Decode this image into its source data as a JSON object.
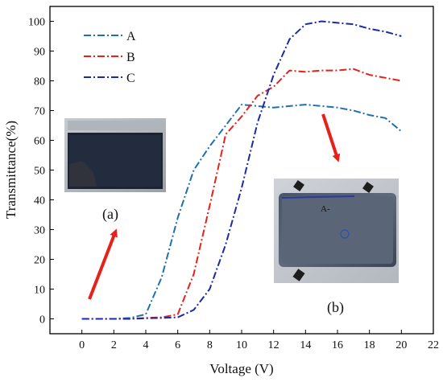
{
  "chart_data": {
    "type": "line",
    "xlabel": "Voltage (V)",
    "ylabel": "Transmittance(%)",
    "xlim": [
      -2,
      22
    ],
    "ylim": [
      -5,
      105
    ],
    "x_ticks": [
      0,
      2,
      4,
      6,
      8,
      10,
      12,
      14,
      16,
      18,
      20,
      22
    ],
    "y_ticks": [
      0,
      10,
      20,
      30,
      40,
      50,
      60,
      70,
      80,
      90,
      100
    ],
    "grid": false,
    "legend_position": "top-left",
    "series": [
      {
        "name": "A",
        "color": "#1f6fb3",
        "dash": "dash-dot",
        "x": [
          0,
          1,
          2,
          3,
          4,
          5,
          6,
          7,
          8,
          9,
          10,
          11,
          12,
          13,
          14,
          15,
          16,
          17,
          18,
          19,
          20
        ],
        "y": [
          0,
          0,
          0,
          0.3,
          1.5,
          14,
          34,
          50,
          58,
          65,
          72,
          71.5,
          71,
          71.5,
          72,
          71.5,
          71,
          70,
          68.5,
          67.5,
          63
        ]
      },
      {
        "name": "B",
        "color": "#e8201c",
        "dash": "dash-dot",
        "x": [
          0,
          1,
          2,
          3,
          4,
          5,
          6,
          7,
          8,
          9,
          10,
          11,
          12,
          13,
          14,
          15,
          16,
          17,
          18,
          19,
          20
        ],
        "y": [
          0,
          0,
          0,
          0,
          0.3,
          0.5,
          1.5,
          15,
          38,
          62,
          68,
          75,
          78,
          83.5,
          83,
          83.5,
          83.5,
          84,
          82,
          81,
          80
        ]
      },
      {
        "name": "C",
        "color": "#1a2aa8",
        "dash": "dash-dot",
        "x": [
          0,
          1,
          2,
          3,
          4,
          5,
          6,
          7,
          8,
          9,
          10,
          11,
          12,
          13,
          14,
          15,
          16,
          17,
          18,
          19,
          20
        ],
        "y": [
          0,
          0,
          0,
          0,
          0.2,
          0.3,
          0.5,
          3,
          10,
          25,
          44,
          66,
          82,
          94,
          99,
          100,
          99.5,
          99,
          97.5,
          96.5,
          95
        ]
      }
    ],
    "annotations": [
      {
        "label": "(a)"
      },
      {
        "label": "(b)"
      }
    ],
    "inset_images": {
      "a_inset_label": "",
      "b_inset_label": "A-"
    }
  }
}
